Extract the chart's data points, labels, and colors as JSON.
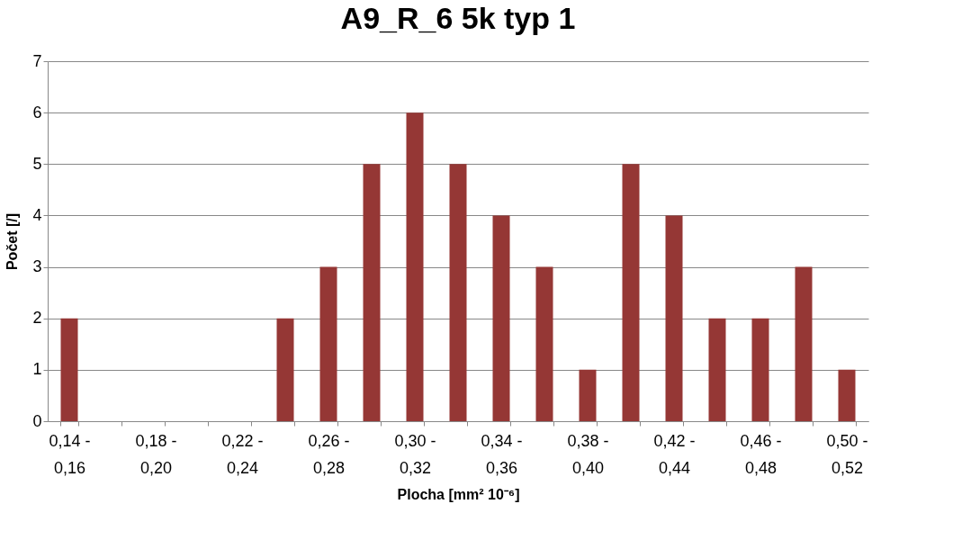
{
  "chart_data": {
    "type": "bar",
    "title": "A9_R_6 5k typ 1",
    "xlabel": "Plocha [mm² 10⁻⁶]",
    "ylabel": "Počet [/]",
    "categories": [
      "0,14 - 0,16",
      null,
      "0,18 - 0,20",
      null,
      "0,22 - 0,24",
      null,
      "0,26 - 0,28",
      null,
      "0,30 - 0,32",
      null,
      "0,34 - 0,36",
      null,
      "0,38 - 0,40",
      null,
      "0,42 - 0,44",
      null,
      "0,46 - 0,48",
      null,
      "0,50 - 0,52"
    ],
    "values": [
      2,
      0,
      0,
      0,
      0,
      2,
      3,
      5,
      6,
      5,
      4,
      3,
      1,
      5,
      4,
      2,
      2,
      3,
      1
    ],
    "color": "#953735",
    "ylim": [
      0,
      7
    ],
    "yticks": [
      0,
      1,
      2,
      3,
      4,
      5,
      6,
      7
    ],
    "grid": "y"
  }
}
